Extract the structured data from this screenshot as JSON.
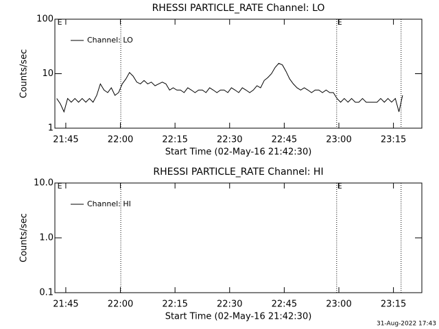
{
  "chart_data": [
    {
      "type": "line",
      "title": "RHESSI PARTICLE_RATE Channel: LO",
      "xlabel": "Start Time (02-May-16 21:42:30)",
      "ylabel": "Counts/sec",
      "log_y": true,
      "legend": "upper left",
      "xlim": [
        -0.5,
        100.3
      ],
      "xticks": [
        {
          "value": 2.5,
          "label": "21:45"
        },
        {
          "value": 17.5,
          "label": "22:00"
        },
        {
          "value": 32.5,
          "label": "22:15"
        },
        {
          "value": 47.5,
          "label": "22:30"
        },
        {
          "value": 62.5,
          "label": "22:45"
        },
        {
          "value": 77.5,
          "label": "23:00"
        },
        {
          "value": 92.5,
          "label": "23:15"
        }
      ],
      "ylim": [
        1,
        100
      ],
      "yticks": [
        1,
        10,
        100
      ],
      "vlines": [
        17.6,
        76.9,
        94.6
      ],
      "annotations": [
        {
          "text": "E",
          "x": 0
        },
        {
          "text": "E",
          "x": 76.9
        }
      ],
      "x": [
        0,
        1,
        2,
        3,
        4,
        5,
        6,
        7,
        8,
        9,
        10,
        11,
        12,
        13,
        14,
        15,
        16,
        17,
        18,
        19,
        20,
        21,
        22,
        23,
        24,
        25,
        26,
        27,
        28,
        29,
        30,
        31,
        32,
        33,
        34,
        35,
        36,
        37,
        38,
        39,
        40,
        41,
        42,
        43,
        44,
        45,
        46,
        47,
        48,
        49,
        50,
        51,
        52,
        53,
        54,
        55,
        56,
        57,
        58,
        59,
        60,
        61,
        62,
        63,
        64,
        65,
        66,
        67,
        68,
        69,
        70,
        71,
        72,
        73,
        74,
        75,
        76,
        77,
        78,
        79,
        80,
        81,
        82,
        83,
        84,
        85,
        86,
        87,
        88,
        89,
        90,
        91,
        92,
        93,
        94,
        95
      ],
      "series": [
        {
          "name": "Channel: LO",
          "color": "#000000",
          "values": [
            3.5,
            2.8,
            2.0,
            3.5,
            3.0,
            3.5,
            3.0,
            3.5,
            3.0,
            3.5,
            3.0,
            4.0,
            6.5,
            5.0,
            4.5,
            5.5,
            4.0,
            4.5,
            6.5,
            8.0,
            10.5,
            9.0,
            7.0,
            6.5,
            7.5,
            6.5,
            7.0,
            6.0,
            6.5,
            7.0,
            6.5,
            5.0,
            5.5,
            5.0,
            5.0,
            4.5,
            5.5,
            5.0,
            4.5,
            5.0,
            5.0,
            4.5,
            5.5,
            5.0,
            4.5,
            5.0,
            5.0,
            4.5,
            5.5,
            5.0,
            4.5,
            5.5,
            5.0,
            4.5,
            5.0,
            6.0,
            5.5,
            7.5,
            8.5,
            10.0,
            13.0,
            15.5,
            14.5,
            11.0,
            8.0,
            6.5,
            5.5,
            5.0,
            5.5,
            5.0,
            4.5,
            5.0,
            5.0,
            4.5,
            5.0,
            4.5,
            4.5,
            3.5,
            3.0,
            3.5,
            3.0,
            3.5,
            3.0,
            3.0,
            3.5,
            3.0,
            3.0,
            3.0,
            3.0,
            3.5,
            3.0,
            3.5,
            3.0,
            3.5,
            2.0,
            4.0
          ]
        }
      ]
    },
    {
      "type": "line",
      "title": "RHESSI PARTICLE_RATE Channel: HI",
      "xlabel": "Start Time (02-May-16 21:42:30)",
      "ylabel": "Counts/sec",
      "log_y": true,
      "legend": "upper left",
      "xlim": [
        -0.5,
        100.3
      ],
      "xticks": [
        {
          "value": 2.5,
          "label": "21:45"
        },
        {
          "value": 17.5,
          "label": "22:00"
        },
        {
          "value": 32.5,
          "label": "22:15"
        },
        {
          "value": 47.5,
          "label": "22:30"
        },
        {
          "value": 62.5,
          "label": "22:45"
        },
        {
          "value": 77.5,
          "label": "23:00"
        },
        {
          "value": 92.5,
          "label": "23:15"
        }
      ],
      "ylim": [
        0.1,
        10
      ],
      "yticks": [
        {
          "value": 0.1,
          "label": "0.1"
        },
        {
          "value": 1,
          "label": "1.0"
        },
        {
          "value": 10,
          "label": "10.0"
        }
      ],
      "vlines": [
        17.6,
        76.9,
        94.6
      ],
      "annotations": [
        {
          "text": "E",
          "x": 0
        },
        {
          "text": "E",
          "x": 76.9
        }
      ],
      "x": [],
      "series": [
        {
          "name": "Channel: HI",
          "color": "#000000",
          "values": []
        }
      ]
    }
  ],
  "footer": "31-Aug-2022 17:43"
}
